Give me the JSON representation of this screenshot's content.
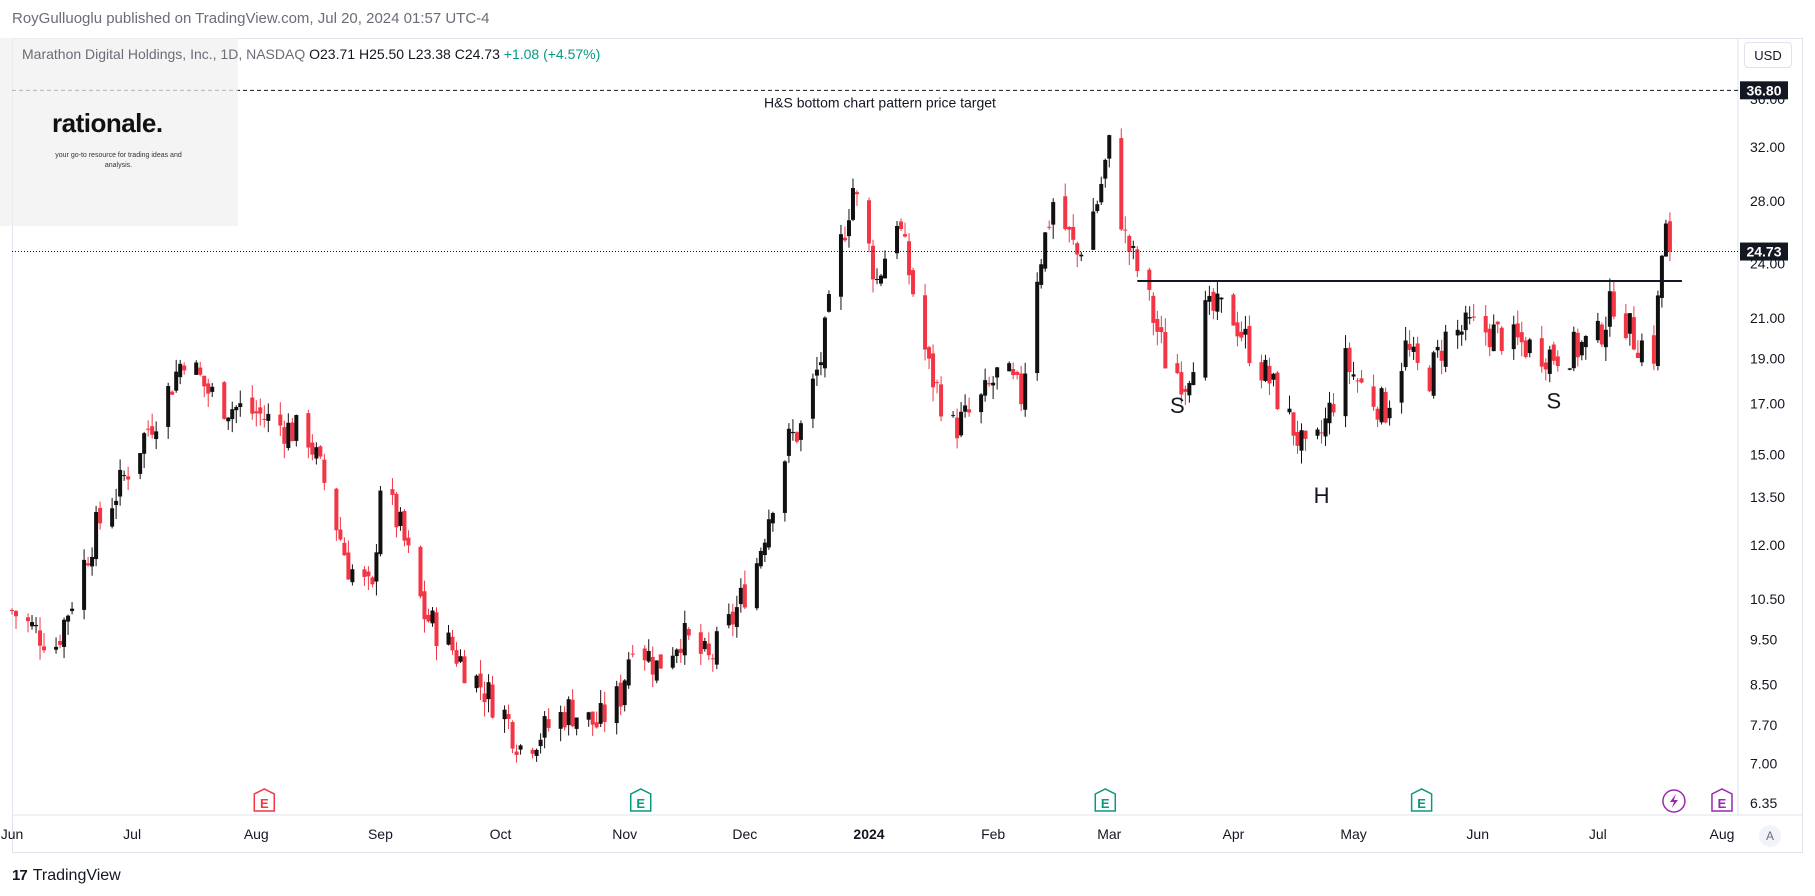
{
  "header": {
    "published_by": "RoyGulluoglu published on TradingView.com, Jul 20, 2024 01:57 UTC-4"
  },
  "legend": {
    "symbol": "Marathon Digital Holdings, Inc., 1D, NASDAQ",
    "open": "O23.71",
    "high": "H25.50",
    "low": "L23.38",
    "close": "C24.73",
    "change": "+1.08 (+4.57%)"
  },
  "brand": {
    "logo": "rationale.",
    "tagline": "your go-to resource for trading ideas and analysis."
  },
  "currency_button": "USD",
  "scale_button": "A",
  "footer": {
    "mark": "17",
    "label": "TradingView"
  },
  "colors": {
    "up": "#111111",
    "down": "#f23645",
    "grid_text": "#131722",
    "earnings_red": "#f23645",
    "earnings_green": "#089981",
    "dividend_purple": "#9c27b0"
  },
  "chart_data": {
    "type": "candlestick",
    "scale": "log",
    "ylim": [
      6.35,
      38.5
    ],
    "y_ticks": [
      "6.35",
      "7.00",
      "7.70",
      "8.50",
      "9.50",
      "10.50",
      "12.00",
      "13.50",
      "15.00",
      "17.00",
      "19.00",
      "21.00",
      "24.00",
      "28.00",
      "32.00",
      "36.00"
    ],
    "x_ticks": [
      "Jun",
      "Jul",
      "Aug",
      "Sep",
      "Oct",
      "Nov",
      "Dec",
      "2024",
      "Feb",
      "Mar",
      "Apr",
      "May",
      "Jun",
      "Jul",
      "Aug"
    ],
    "x_range": [
      "2023-06-01",
      "2024-08-05"
    ],
    "last_price": "24.73",
    "target_price": "36.80",
    "target_label": "H&S bottom chart pattern price target",
    "neckline": {
      "value": 23.0,
      "from": "2024-03-08",
      "to": "2024-07-22"
    },
    "pattern_labels": [
      {
        "text": "S",
        "date": "2024-03-18",
        "price": 16.6
      },
      {
        "text": "H",
        "date": "2024-04-23",
        "price": 13.3
      },
      {
        "text": "S",
        "date": "2024-06-20",
        "price": 16.8
      }
    ],
    "events": [
      {
        "type": "E",
        "date": "2023-08-03",
        "color": "red"
      },
      {
        "type": "E",
        "date": "2023-11-05",
        "color": "green"
      },
      {
        "type": "E",
        "date": "2024-02-29",
        "color": "green"
      },
      {
        "type": "E",
        "date": "2024-05-18",
        "color": "green"
      },
      {
        "type": "flash",
        "date": "2024-07-20",
        "color": "purple"
      },
      {
        "type": "E",
        "date": "2024-08-01",
        "color": "purple"
      }
    ],
    "price_path": [
      [
        "2023-06-01",
        10.2
      ],
      [
        "2023-06-07",
        9.7
      ],
      [
        "2023-06-12",
        9.4
      ],
      [
        "2023-06-16",
        10.5
      ],
      [
        "2023-06-22",
        12.5
      ],
      [
        "2023-06-28",
        13.9
      ],
      [
        "2023-07-05",
        16.0
      ],
      [
        "2023-07-10",
        17.5
      ],
      [
        "2023-07-14",
        19.2
      ],
      [
        "2023-07-20",
        17.5
      ],
      [
        "2023-07-25",
        16.9
      ],
      [
        "2023-08-01",
        16.6
      ],
      [
        "2023-08-07",
        16.1
      ],
      [
        "2023-08-14",
        15.7
      ],
      [
        "2023-08-18",
        14.0
      ],
      [
        "2023-08-24",
        11.4
      ],
      [
        "2023-08-30",
        10.6
      ],
      [
        "2023-09-01",
        14.0
      ],
      [
        "2023-09-06",
        12.5
      ],
      [
        "2023-09-12",
        10.1
      ],
      [
        "2023-09-18",
        9.4
      ],
      [
        "2023-09-25",
        8.6
      ],
      [
        "2023-10-02",
        7.9
      ],
      [
        "2023-10-06",
        7.3
      ],
      [
        "2023-10-12",
        7.6
      ],
      [
        "2023-10-18",
        8.0
      ],
      [
        "2023-10-25",
        7.7
      ],
      [
        "2023-10-31",
        8.3
      ],
      [
        "2023-11-03",
        9.6
      ],
      [
        "2023-11-09",
        8.9
      ],
      [
        "2023-11-15",
        9.6
      ],
      [
        "2023-11-22",
        9.0
      ],
      [
        "2023-11-28",
        10.0
      ],
      [
        "2023-12-04",
        11.5
      ],
      [
        "2023-12-08",
        13.5
      ],
      [
        "2023-12-12",
        15.5
      ],
      [
        "2023-12-15",
        16.0
      ],
      [
        "2023-12-20",
        19.0
      ],
      [
        "2023-12-24",
        24.0
      ],
      [
        "2023-12-28",
        29.0
      ],
      [
        "2024-01-03",
        23.0
      ],
      [
        "2024-01-08",
        27.0
      ],
      [
        "2024-01-11",
        23.5
      ],
      [
        "2024-01-16",
        18.5
      ],
      [
        "2024-01-22",
        16.0
      ],
      [
        "2024-01-28",
        16.8
      ],
      [
        "2024-02-03",
        18.5
      ],
      [
        "2024-02-08",
        17.3
      ],
      [
        "2024-02-12",
        23.5
      ],
      [
        "2024-02-16",
        28.0
      ],
      [
        "2024-02-22",
        24.5
      ],
      [
        "2024-02-27",
        28.0
      ],
      [
        "2024-03-01",
        32.0
      ],
      [
        "2024-03-05",
        25.5
      ],
      [
        "2024-03-10",
        22.5
      ],
      [
        "2024-03-15",
        19.0
      ],
      [
        "2024-03-20",
        18.0
      ],
      [
        "2024-03-25",
        21.2
      ],
      [
        "2024-03-31",
        21.5
      ],
      [
        "2024-04-05",
        19.5
      ],
      [
        "2024-04-10",
        18.0
      ],
      [
        "2024-04-16",
        16.0
      ],
      [
        "2024-04-20",
        14.6
      ],
      [
        "2024-04-24",
        16.2
      ],
      [
        "2024-04-29",
        18.8
      ],
      [
        "2024-05-04",
        17.5
      ],
      [
        "2024-05-09",
        16.8
      ],
      [
        "2024-05-14",
        19.5
      ],
      [
        "2024-05-19",
        17.8
      ],
      [
        "2024-05-24",
        20.0
      ],
      [
        "2024-05-30",
        20.5
      ],
      [
        "2024-06-04",
        20.3
      ],
      [
        "2024-06-10",
        19.8
      ],
      [
        "2024-06-15",
        19.5
      ],
      [
        "2024-06-20",
        19.2
      ],
      [
        "2024-06-26",
        19.5
      ],
      [
        "2024-07-01",
        20.0
      ],
      [
        "2024-07-05",
        22.0
      ],
      [
        "2024-07-10",
        20.0
      ],
      [
        "2024-07-15",
        19.3
      ],
      [
        "2024-07-17",
        24.5
      ],
      [
        "2024-07-18",
        26.0
      ],
      [
        "2024-07-19",
        24.73
      ]
    ]
  }
}
